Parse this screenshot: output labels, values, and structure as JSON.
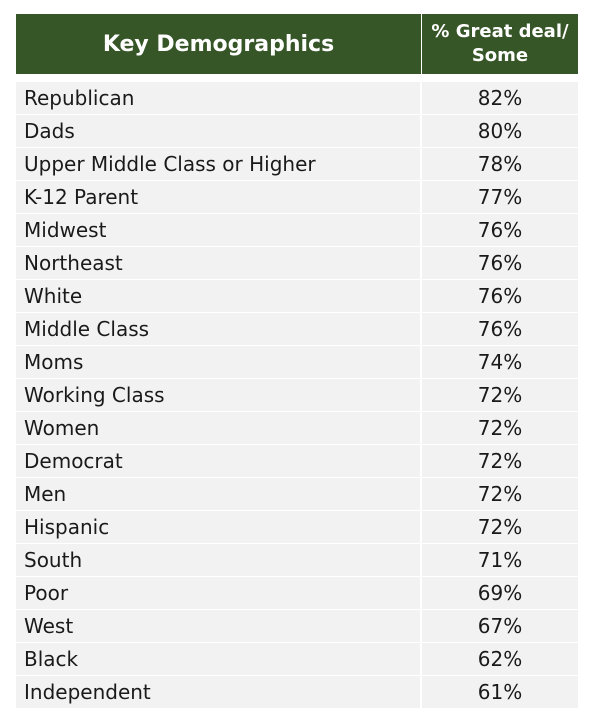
{
  "header": {
    "label": "Key Demographics",
    "value_line1": "% Great deal/",
    "value_line2": "Some"
  },
  "colors": {
    "header_bg": "#375628",
    "header_text": "#ffffff",
    "row_bg": "#f2f2f2"
  },
  "chart_data": {
    "type": "table",
    "columns": [
      "Key Demographics",
      "% Great deal/ Some"
    ],
    "rows": [
      {
        "label": "Republican",
        "display": "82%",
        "value": 82
      },
      {
        "label": "Dads",
        "display": "80%",
        "value": 80
      },
      {
        "label": "Upper Middle Class or Higher",
        "display": "78%",
        "value": 78
      },
      {
        "label": "K-12 Parent",
        "display": "77%",
        "value": 77
      },
      {
        "label": "Midwest",
        "display": "76%",
        "value": 76
      },
      {
        "label": "Northeast",
        "display": "76%",
        "value": 76
      },
      {
        "label": "White",
        "display": "76%",
        "value": 76
      },
      {
        "label": "Middle Class",
        "display": "76%",
        "value": 76
      },
      {
        "label": "Moms",
        "display": "74%",
        "value": 74
      },
      {
        "label": "Working Class",
        "display": "72%",
        "value": 72
      },
      {
        "label": "Women",
        "display": "72%",
        "value": 72
      },
      {
        "label": "Democrat",
        "display": "72%",
        "value": 72
      },
      {
        "label": "Men",
        "display": "72%",
        "value": 72
      },
      {
        "label": "Hispanic",
        "display": "72%",
        "value": 72
      },
      {
        "label": "South",
        "display": "71%",
        "value": 71
      },
      {
        "label": "Poor",
        "display": "69%",
        "value": 69
      },
      {
        "label": "West",
        "display": "67%",
        "value": 67
      },
      {
        "label": "Black",
        "display": "62%",
        "value": 62
      },
      {
        "label": "Independent",
        "display": "61%",
        "value": 61
      }
    ]
  }
}
